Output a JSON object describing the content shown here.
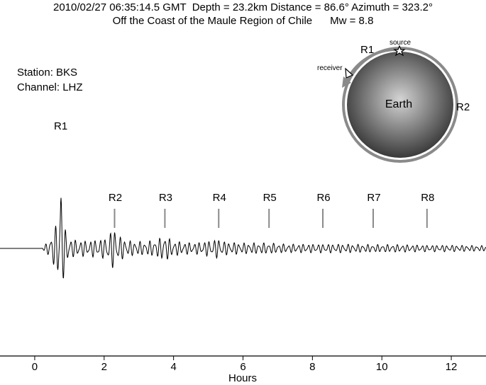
{
  "header": {
    "line1": "2010/02/27 06:35:14.5 GMT  Depth = 23.2km Distance = 86.6° Azimuth = 323.2°",
    "line2": "Off the Coast of the Maule Region of Chile      Mw = 8.8"
  },
  "station": {
    "station_label": "Station: BKS",
    "channel_label": "Channel: LHZ"
  },
  "inset": {
    "earth_label": "Earth",
    "source_label": "source",
    "receiver_label": "receiver",
    "r1_label": "R1",
    "r2_label": "R2",
    "colors": {
      "ring": "#8a8a8a",
      "earth_light": "#d4d4d4",
      "earth_dark": "#3a3a3a"
    }
  },
  "chart_data": {
    "type": "line",
    "title": "",
    "xlabel": "Hours",
    "ylabel": "",
    "xlim": [
      -1,
      13
    ],
    "xticks": [
      0,
      2,
      4,
      6,
      8,
      10,
      12
    ],
    "grid": false,
    "phase_markers": [
      {
        "label": "R1",
        "x": 0.75
      },
      {
        "label": "R2",
        "x": 2.3
      },
      {
        "label": "R3",
        "x": 3.75
      },
      {
        "label": "R4",
        "x": 5.3
      },
      {
        "label": "R5",
        "x": 6.75
      },
      {
        "label": "R6",
        "x": 8.3
      },
      {
        "label": "R7",
        "x": 9.75
      },
      {
        "label": "R8",
        "x": 11.3
      }
    ],
    "trace": {
      "name": "",
      "color": "#000000",
      "envelope_x": [
        -1,
        0.2,
        0.35,
        0.5,
        0.6,
        0.7,
        0.75,
        0.8,
        0.9,
        1.1,
        1.5,
        2.0,
        2.2,
        2.3,
        2.4,
        2.7,
        3.2,
        3.6,
        3.75,
        3.9,
        4.2,
        4.6,
        5.0,
        5.3,
        5.5,
        6.0,
        6.75,
        7.2,
        8.3,
        9.0,
        9.75,
        10.5,
        11.3,
        12.0,
        13.0
      ],
      "envelope_y": [
        0.0,
        0.0,
        0.05,
        0.14,
        0.2,
        0.3,
        1.0,
        0.35,
        0.14,
        0.08,
        0.07,
        0.09,
        0.16,
        0.2,
        0.12,
        0.07,
        0.06,
        0.09,
        0.14,
        0.08,
        0.06,
        0.05,
        0.07,
        0.09,
        0.06,
        0.05,
        0.05,
        0.04,
        0.04,
        0.04,
        0.035,
        0.035,
        0.03,
        0.03,
        0.025
      ]
    }
  }
}
